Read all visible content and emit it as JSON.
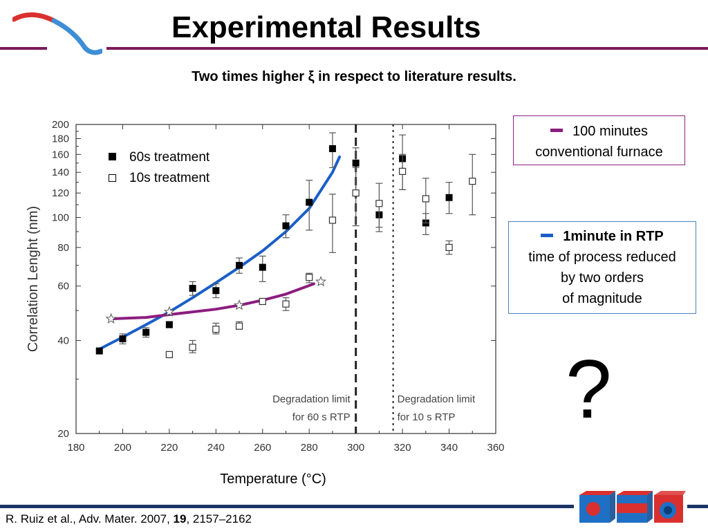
{
  "slide": {
    "title": "Experimental Results",
    "subtitle": "Two times higher ξ in respect to literature results.",
    "citation": {
      "prefix": "R. Ruiz et al., Adv. Mater. 2007, ",
      "volume": "19",
      "suffix": ", 2157–2162"
    },
    "question_mark": "?",
    "brand_colors": {
      "rule": "#7a1a5a",
      "bottom_rule": "#1b3565",
      "logo_red": "#d9302f",
      "logo_blue": "#3d8ed4"
    }
  },
  "legend": {
    "series_60": "60s treatment",
    "series_10": "10s treatment"
  },
  "callouts": {
    "furnace": {
      "line1": "100 minutes",
      "line2": "conventional furnace",
      "color": "#8c1d7f"
    },
    "rtp": {
      "bold": "1minute in RTP",
      "line2": "time of process reduced",
      "line3": "by two orders",
      "line4": "of magnitude",
      "color": "#1a5fc8"
    }
  },
  "x_axis_label": "Temperature (°C)",
  "chart_data": {
    "type": "scatter",
    "ylabel": "Correlation Lenght (nm)",
    "xlabel": "Temperature (°C)",
    "xlim": [
      180,
      360
    ],
    "ylim": [
      20,
      200
    ],
    "yscale": "log",
    "x_ticks": [
      180,
      200,
      220,
      240,
      260,
      280,
      300,
      320,
      340,
      360
    ],
    "y_ticks": [
      20,
      40,
      60,
      80,
      100,
      120,
      140,
      160,
      180,
      200
    ],
    "series": [
      {
        "name": "60s treatment",
        "marker": "filled-square",
        "points": [
          {
            "x": 190,
            "y": 37,
            "lo": 37,
            "hi": 37
          },
          {
            "x": 200,
            "y": 40.5,
            "lo": 39,
            "hi": 42
          },
          {
            "x": 210,
            "y": 42.5,
            "lo": 41,
            "hi": 44
          },
          {
            "x": 220,
            "y": 45,
            "lo": 44,
            "hi": 46
          },
          {
            "x": 230,
            "y": 59,
            "lo": 56,
            "hi": 62
          },
          {
            "x": 240,
            "y": 58,
            "lo": 55,
            "hi": 61
          },
          {
            "x": 250,
            "y": 70,
            "lo": 66,
            "hi": 74
          },
          {
            "x": 260,
            "y": 69,
            "lo": 62,
            "hi": 75
          },
          {
            "x": 270,
            "y": 94,
            "lo": 86,
            "hi": 102
          },
          {
            "x": 280,
            "y": 112,
            "lo": 91,
            "hi": 132
          },
          {
            "x": 290,
            "y": 167,
            "lo": 145,
            "hi": 188
          },
          {
            "x": 300,
            "y": 150,
            "lo": 120,
            "hi": 168
          },
          {
            "x": 310,
            "y": 102,
            "lo": 90,
            "hi": 113
          },
          {
            "x": 320,
            "y": 155,
            "lo": 123,
            "hi": 185
          },
          {
            "x": 330,
            "y": 96,
            "lo": 88,
            "hi": 103
          },
          {
            "x": 340,
            "y": 116,
            "lo": 103,
            "hi": 130
          }
        ]
      },
      {
        "name": "10s treatment",
        "marker": "open-square",
        "points": [
          {
            "x": 220,
            "y": 36,
            "lo": 36,
            "hi": 36
          },
          {
            "x": 230,
            "y": 38,
            "lo": 36.5,
            "hi": 40
          },
          {
            "x": 240,
            "y": 43.5,
            "lo": 42,
            "hi": 45.5
          },
          {
            "x": 250,
            "y": 44.5,
            "lo": 43.5,
            "hi": 46
          },
          {
            "x": 260,
            "y": 53.5,
            "lo": 52.5,
            "hi": 54.5
          },
          {
            "x": 270,
            "y": 52.5,
            "lo": 50,
            "hi": 55
          },
          {
            "x": 280,
            "y": 64,
            "lo": 61.5,
            "hi": 66
          },
          {
            "x": 290,
            "y": 98,
            "lo": 77,
            "hi": 119
          },
          {
            "x": 300,
            "y": 120,
            "lo": 94,
            "hi": 145
          },
          {
            "x": 310,
            "y": 111,
            "lo": 93,
            "hi": 129
          },
          {
            "x": 320,
            "y": 141,
            "lo": 123,
            "hi": 160
          },
          {
            "x": 330,
            "y": 115,
            "lo": 96,
            "hi": 134
          },
          {
            "x": 340,
            "y": 80,
            "lo": 76,
            "hi": 84
          },
          {
            "x": 350,
            "y": 131,
            "lo": 102,
            "hi": 160
          }
        ]
      },
      {
        "marker": "star",
        "points": [
          {
            "x": 195,
            "y": 47
          },
          {
            "x": 220,
            "y": 49.5
          },
          {
            "x": 250,
            "y": 52
          },
          {
            "x": 285,
            "y": 62
          }
        ]
      }
    ],
    "fits": [
      {
        "color": "#1a5fc8",
        "x": [
          190,
          200,
          210,
          220,
          230,
          240,
          250,
          260,
          270,
          280,
          290,
          293
        ],
        "y": [
          37.5,
          41,
          45,
          49.5,
          55,
          61.5,
          69,
          78,
          90,
          107,
          140,
          157
        ]
      },
      {
        "color": "#8c1d7f",
        "x": [
          195,
          210,
          220,
          230,
          240,
          250,
          260,
          270,
          282
        ],
        "y": [
          47,
          47.5,
          48.5,
          49.5,
          50.5,
          52,
          54,
          56.5,
          61
        ]
      }
    ],
    "vlines": [
      {
        "x": 300,
        "style": "dashed",
        "label1": "Degradation limit",
        "label2": "for 60 s RTP"
      },
      {
        "x": 316,
        "style": "dotted",
        "label1": "Degradation limit",
        "label2": "for 10 s RTP"
      }
    ]
  }
}
